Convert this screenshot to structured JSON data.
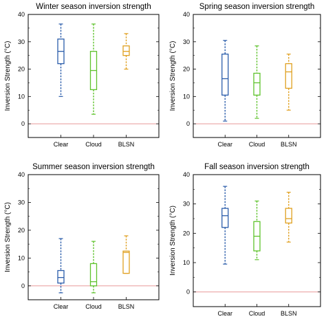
{
  "chart_data": [
    {
      "type": "box",
      "title": "Winter season inversion strength",
      "ylabel": "Inversion Strength (°C)",
      "ylim": [
        -5,
        40
      ],
      "yticks": [
        0,
        10,
        20,
        30,
        40
      ],
      "categories": [
        "Clear",
        "Cloud",
        "BLSN"
      ],
      "boxes": [
        {
          "name": "Clear",
          "color": "#2a5caa",
          "min": 10,
          "q1": 22,
          "median": 26.5,
          "q3": 31,
          "max": 36.5
        },
        {
          "name": "Cloud",
          "color": "#5ec22b",
          "min": 3.5,
          "q1": 12.5,
          "median": 19.5,
          "q3": 26.5,
          "max": 36.5
        },
        {
          "name": "BLSN",
          "color": "#e0a020",
          "min": 20,
          "q1": 25,
          "median": 26.5,
          "q3": 28.5,
          "max": 33
        }
      ],
      "reference_line": {
        "y": 0,
        "color": "#e58a8a"
      }
    },
    {
      "type": "box",
      "title": "Spring season inversion strength",
      "ylabel": "Inversion Strength (°C)",
      "ylim": [
        -5,
        40
      ],
      "yticks": [
        0,
        10,
        20,
        30,
        40
      ],
      "categories": [
        "Clear",
        "Cloud",
        "BLSN"
      ],
      "boxes": [
        {
          "name": "Clear",
          "color": "#2a5caa",
          "min": 1,
          "q1": 10.5,
          "median": 16.5,
          "q3": 25.5,
          "max": 30.5
        },
        {
          "name": "Cloud",
          "color": "#5ec22b",
          "min": 2,
          "q1": 10.5,
          "median": 15,
          "q3": 18.5,
          "max": 28.5
        },
        {
          "name": "BLSN",
          "color": "#e0a020",
          "min": 5,
          "q1": 13,
          "median": 19,
          "q3": 22,
          "max": 25.5
        }
      ],
      "reference_line": {
        "y": 0,
        "color": "#e58a8a"
      }
    },
    {
      "type": "box",
      "title": "Summer season inversion strength",
      "ylabel": "Inversion Strength (°C)",
      "ylim": [
        -5,
        40
      ],
      "yticks": [
        0,
        10,
        20,
        30,
        40
      ],
      "categories": [
        "Clear",
        "Cloud",
        "BLSN"
      ],
      "boxes": [
        {
          "name": "Clear",
          "color": "#2a5caa",
          "min": -2.5,
          "q1": 1,
          "median": 3,
          "q3": 5.5,
          "max": 17
        },
        {
          "name": "Cloud",
          "color": "#5ec22b",
          "min": -2.5,
          "q1": 0,
          "median": 1.5,
          "q3": 8,
          "max": 16
        },
        {
          "name": "BLSN",
          "color": "#e0a020",
          "min": 4.5,
          "q1": 4.5,
          "median": 12,
          "q3": 12.5,
          "max": 18
        }
      ],
      "reference_line": {
        "y": 0,
        "color": "#e58a8a"
      }
    },
    {
      "type": "box",
      "title": "Fall season inversion strength",
      "ylabel": "Inversion Strength (°C)",
      "ylim": [
        -5,
        40
      ],
      "yticks": [
        0,
        10,
        20,
        30,
        40
      ],
      "categories": [
        "Clear",
        "Cloud",
        "BLSN"
      ],
      "boxes": [
        {
          "name": "Clear",
          "color": "#2a5caa",
          "min": 9.5,
          "q1": 22,
          "median": 26,
          "q3": 28.5,
          "max": 36
        },
        {
          "name": "Cloud",
          "color": "#5ec22b",
          "min": 11,
          "q1": 14,
          "median": 19,
          "q3": 24,
          "max": 31
        },
        {
          "name": "BLSN",
          "color": "#e0a020",
          "min": 17,
          "q1": 23.5,
          "median": 25,
          "q3": 28.5,
          "max": 34
        }
      ],
      "reference_line": {
        "y": 0,
        "color": "#e58a8a"
      }
    }
  ]
}
